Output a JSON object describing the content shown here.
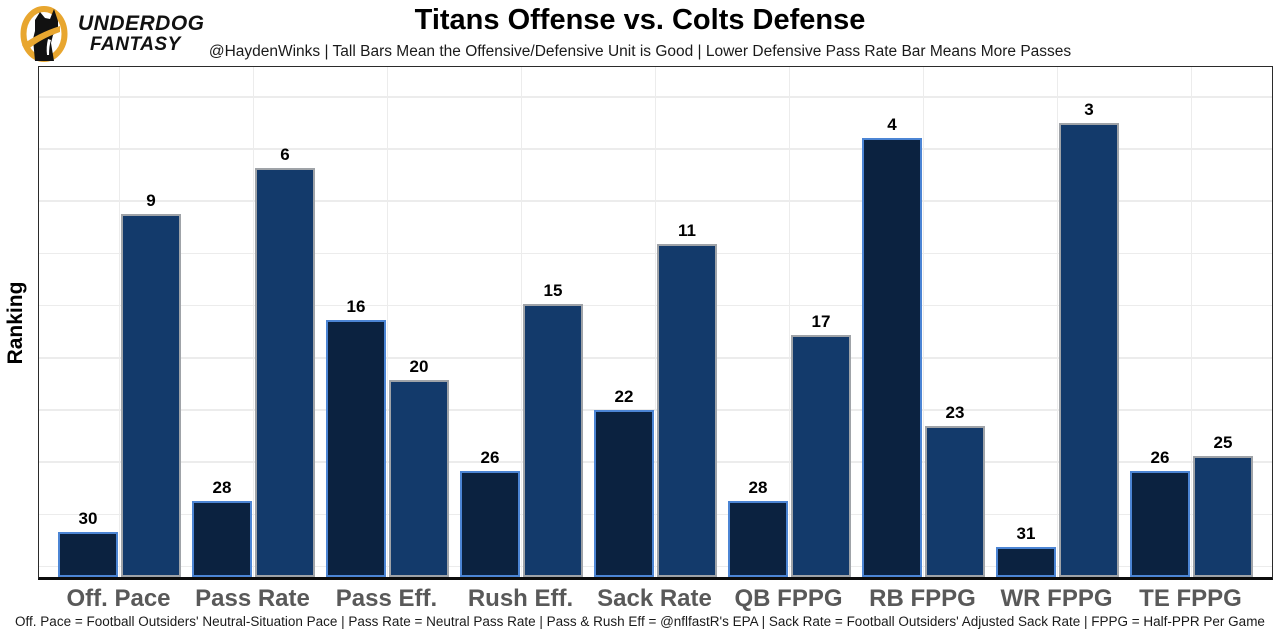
{
  "header": {
    "brand": {
      "line1": "UNDERDOG",
      "line2": "FANTASY",
      "logo_icon": "underdog-dog-logo",
      "gold": "#E8A62F",
      "black": "#111111"
    },
    "title": "Titans Offense vs. Colts Defense",
    "subtitle": "@HaydenWinks | Tall Bars Mean the Offensive/Defensive Unit is Good | Lower Defensive Pass Rate Bar Means More Passes"
  },
  "chart_data": {
    "type": "bar",
    "title": "Titans Offense vs. Colts Defense",
    "ylabel": "Ranking",
    "xlabel": "",
    "categories": [
      "Off. Pace",
      "Pass Rate",
      "Pass Eff.",
      "Rush Eff.",
      "Sack Rate",
      "QB FPPG",
      "RB FPPG",
      "WR FPPG",
      "TE FPPG"
    ],
    "series": [
      {
        "name": "Titans Offense",
        "values": [
          30,
          28,
          16,
          26,
          22,
          28,
          4,
          31,
          26
        ],
        "fill": "#0B2240",
        "edge": "#4C85D4"
      },
      {
        "name": "Colts Defense",
        "values": [
          9,
          6,
          20,
          15,
          11,
          17,
          23,
          3,
          25
        ],
        "fill": "#133A6B",
        "edge": "#9FA3A8"
      }
    ],
    "value_encoding": "bar height = 33 - ranking (rank 1 is tallest)",
    "ylim": [
      0,
      33
    ],
    "grid": true,
    "bar_labels": true,
    "legend": "none"
  },
  "footer": {
    "note": "Off. Pace = Football Outsiders' Neutral-Situation Pace | Pass Rate = Neutral Pass Rate | Pass & Rush Eff = @nflfastR's EPA | Sack Rate = Football Outsiders' Adjusted Sack Rate | FPPG = Half-PPR Per Game"
  }
}
